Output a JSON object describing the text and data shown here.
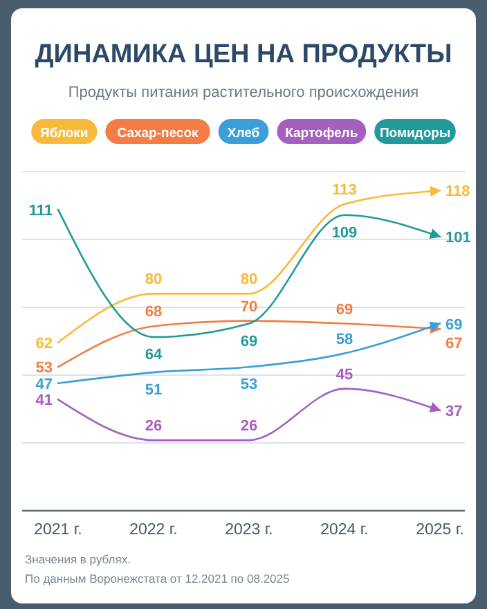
{
  "chart_data": {
    "type": "line",
    "title": "ДИНАМИКА ЦЕН НА ПРОДУКТЫ",
    "subtitle": "Продукты питания растительного происхождения",
    "categories": [
      "2021 г.",
      "2022 г.",
      "2023 г.",
      "2024 г.",
      "2025 г."
    ],
    "series": [
      {
        "name": "Яблоки",
        "color": "#f9b93a",
        "values": [
          62,
          80,
          80,
          113,
          118
        ]
      },
      {
        "name": "Сахар-песок",
        "color": "#f27d45",
        "values": [
          53,
          68,
          70,
          69,
          67
        ]
      },
      {
        "name": "Хлеб",
        "color": "#3a9fd6",
        "values": [
          47,
          51,
          53,
          58,
          69
        ]
      },
      {
        "name": "Картофель",
        "color": "#a55fc0",
        "values": [
          41,
          26,
          26,
          45,
          37
        ]
      },
      {
        "name": "Помидоры",
        "color": "#22999a",
        "values": [
          111,
          64,
          69,
          109,
          101
        ]
      }
    ],
    "ylim": [
      0,
      125
    ],
    "yticks": [
      {
        "value": 25,
        "label": null
      },
      {
        "value": 50,
        "label": null
      },
      {
        "value": 75,
        "label": null
      },
      {
        "value": 100,
        "label": null
      },
      {
        "value": 125,
        "label": null
      }
    ],
    "grid": "y",
    "tick_labels": "x",
    "legend": "top",
    "data_labels": true,
    "marker": "none",
    "line_style": "solid",
    "annotations": [
      "Значения в рублях.",
      "По данным Воронежстата от 12.2021 по 08.2025"
    ]
  }
}
